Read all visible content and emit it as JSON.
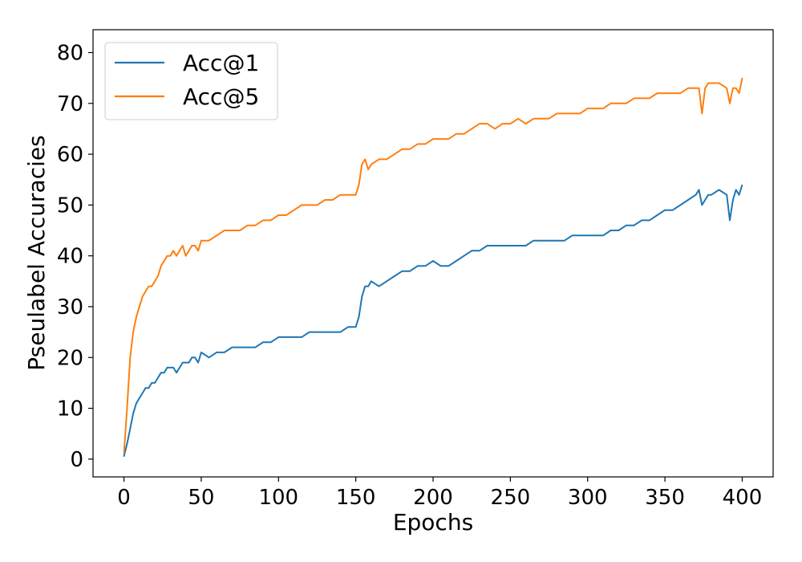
{
  "chart_data": {
    "type": "line",
    "title": "",
    "xlabel": "Epochs",
    "ylabel": "Pseulabel Accuracies",
    "xlim": [
      -20,
      420
    ],
    "ylim": [
      -3.5,
      84.5
    ],
    "xticks": [
      0,
      50,
      100,
      150,
      200,
      250,
      300,
      350,
      400
    ],
    "yticks": [
      0,
      10,
      20,
      30,
      40,
      50,
      60,
      70,
      80
    ],
    "grid": false,
    "legend": "top-left",
    "series": [
      {
        "name": "Acc@1",
        "color": "#1f77b4",
        "x": [
          0,
          2,
          4,
          6,
          8,
          10,
          12,
          14,
          16,
          18,
          20,
          22,
          24,
          26,
          28,
          30,
          32,
          34,
          36,
          38,
          40,
          42,
          44,
          46,
          48,
          50,
          55,
          60,
          65,
          70,
          75,
          80,
          85,
          90,
          95,
          100,
          105,
          110,
          115,
          120,
          125,
          130,
          135,
          140,
          145,
          150,
          152,
          154,
          156,
          158,
          160,
          165,
          170,
          175,
          180,
          185,
          190,
          195,
          200,
          205,
          210,
          215,
          220,
          225,
          230,
          235,
          240,
          245,
          250,
          255,
          260,
          265,
          270,
          275,
          280,
          285,
          290,
          295,
          300,
          305,
          310,
          315,
          320,
          325,
          330,
          335,
          340,
          345,
          350,
          355,
          360,
          365,
          370,
          372,
          374,
          376,
          378,
          380,
          385,
          390,
          392,
          394,
          396,
          398,
          400
        ],
        "y": [
          0.5,
          3,
          6,
          9,
          11,
          12,
          13,
          14,
          14,
          15,
          15,
          16,
          17,
          17,
          18,
          18,
          18,
          17,
          18,
          19,
          19,
          19,
          20,
          20,
          19,
          21,
          20,
          21,
          21,
          22,
          22,
          22,
          22,
          23,
          23,
          24,
          24,
          24,
          24,
          25,
          25,
          25,
          25,
          25,
          26,
          26,
          28,
          32,
          34,
          34,
          35,
          34,
          35,
          36,
          37,
          37,
          38,
          38,
          39,
          38,
          38,
          39,
          40,
          41,
          41,
          42,
          42,
          42,
          42,
          42,
          42,
          43,
          43,
          43,
          43,
          43,
          44,
          44,
          44,
          44,
          44,
          45,
          45,
          46,
          46,
          47,
          47,
          48,
          49,
          49,
          50,
          51,
          52,
          53,
          50,
          51,
          52,
          52,
          53,
          52,
          47,
          51,
          53,
          52,
          54
        ]
      },
      {
        "name": "Acc@5",
        "color": "#ff7f0e",
        "x": [
          0,
          2,
          4,
          6,
          8,
          10,
          12,
          14,
          16,
          18,
          20,
          22,
          24,
          26,
          28,
          30,
          32,
          34,
          36,
          38,
          40,
          42,
          44,
          46,
          48,
          50,
          55,
          60,
          65,
          70,
          75,
          80,
          85,
          90,
          95,
          100,
          105,
          110,
          115,
          120,
          125,
          130,
          135,
          140,
          145,
          150,
          152,
          154,
          156,
          158,
          160,
          165,
          170,
          175,
          180,
          185,
          190,
          195,
          200,
          205,
          210,
          215,
          220,
          225,
          230,
          235,
          240,
          245,
          250,
          255,
          260,
          265,
          270,
          275,
          280,
          285,
          290,
          295,
          300,
          305,
          310,
          315,
          320,
          325,
          330,
          335,
          340,
          345,
          350,
          355,
          360,
          365,
          370,
          372,
          374,
          376,
          378,
          380,
          385,
          390,
          392,
          394,
          396,
          398,
          400
        ],
        "y": [
          1,
          10,
          20,
          25,
          28,
          30,
          32,
          33,
          34,
          34,
          35,
          36,
          38,
          39,
          40,
          40,
          41,
          40,
          41,
          42,
          40,
          41,
          42,
          42,
          41,
          43,
          43,
          44,
          45,
          45,
          45,
          46,
          46,
          47,
          47,
          48,
          48,
          49,
          50,
          50,
          50,
          51,
          51,
          52,
          52,
          52,
          54,
          58,
          59,
          57,
          58,
          59,
          59,
          60,
          61,
          61,
          62,
          62,
          63,
          63,
          63,
          64,
          64,
          65,
          66,
          66,
          65,
          66,
          66,
          67,
          66,
          67,
          67,
          67,
          68,
          68,
          68,
          68,
          69,
          69,
          69,
          70,
          70,
          70,
          71,
          71,
          71,
          72,
          72,
          72,
          72,
          73,
          73,
          73,
          68,
          73,
          74,
          74,
          74,
          73,
          70,
          73,
          73,
          72,
          75
        ]
      }
    ]
  }
}
